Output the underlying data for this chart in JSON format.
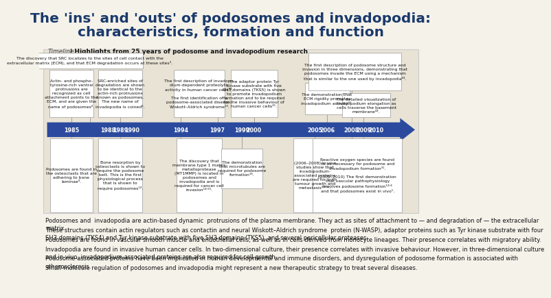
{
  "title_line1": "The 'ins' and 'outs' of podosomes and invadopodia:",
  "title_line2": "characteristics, formation and function",
  "title_color": "#1a3a6b",
  "title_fontsize": 14.5,
  "bg_color": "#f5f2ea",
  "timeline_bg": "#e8e3d5",
  "arrow_color": "#2b4a9e",
  "years": [
    "1985",
    "1988",
    "1989",
    "1990",
    "1994",
    "1997",
    "1999",
    "2000",
    "2005",
    "2006",
    "2008",
    "2009",
    "2010"
  ],
  "body_texts": [
    "Podosomes and  invadopodia are actin-based dynamic  protrusions of the plasma membrane. They act as sites of attachment to — and degradation of — the extracellular\nmatrix.",
    "These structures contain actin regulators such as contactin and neural Wiskott–Aldrich syndrome  protein (N-WASP), adaptor proteins such as Tyr kinase substrate with four\nSH3 domains (TKS4) and Tyr kinase substrate with five SH3 domains (TKS5), and several pericellular proteases.",
    "Podosomes are found in vascular smooth muscle and endothelial cells, as well as in cells derived from monocyte lineages. Their presence correlates with migratory ability.",
    "Invadopodia are found in invasive human cancer cells. In two-dimensional culture, their presence correlates with invasive behaviour. However, in three-dimensional culture\nand in vivo, invadopodium-associated proteins are also required for cell growth.",
    "Podosome-associated proteins have been implicated in human developmental and immune disorders, and dysregulation of podosome formation is associated with\natherosclerosis.",
    "Small-molecule regulation of podosomes and invadopodia might represent a new therapeutic strategy to treat several diseases."
  ],
  "body_fontsize": 6.0
}
